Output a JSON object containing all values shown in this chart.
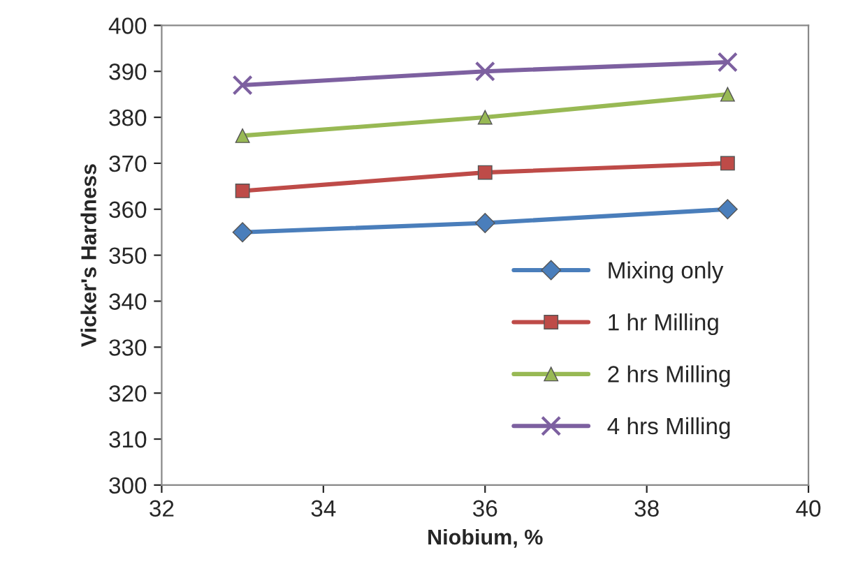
{
  "chart_data": {
    "type": "line",
    "xlabel": "Niobium, %",
    "ylabel": "Vicker's Hardness",
    "x": [
      33,
      36,
      39
    ],
    "series": [
      {
        "name": "Mixing only",
        "color": "#4a7ebb",
        "marker": "diamond",
        "values": [
          355,
          357,
          360
        ]
      },
      {
        "name": "1 hr Milling",
        "color": "#be4b48",
        "marker": "square",
        "values": [
          364,
          368,
          370
        ]
      },
      {
        "name": "2 hrs Milling",
        "color": "#98b954",
        "marker": "triangle",
        "values": [
          376,
          380,
          385
        ]
      },
      {
        "name": "4 hrs Milling",
        "color": "#7d60a0",
        "marker": "cross",
        "values": [
          387,
          390,
          392
        ]
      }
    ],
    "xlim": [
      32,
      40
    ],
    "xticks": [
      32,
      34,
      36,
      38,
      40
    ],
    "ylim": [
      300,
      400
    ],
    "yticks": [
      300,
      310,
      320,
      330,
      340,
      350,
      360,
      370,
      380,
      390,
      400
    ],
    "grid": false,
    "legend": "bottom right"
  }
}
